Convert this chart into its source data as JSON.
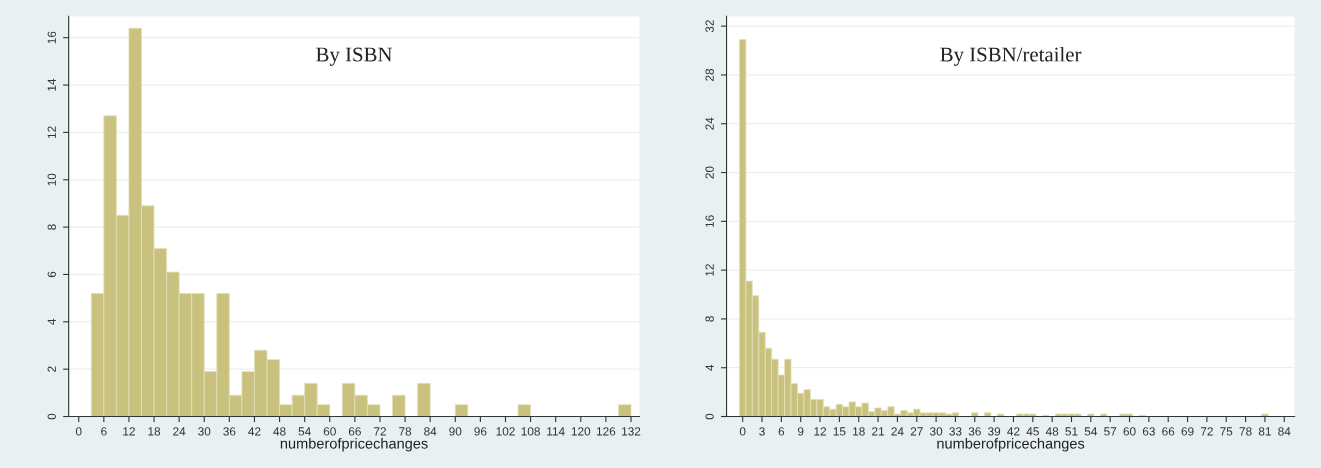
{
  "chart_data": [
    {
      "type": "histogram",
      "title": "By ISBN",
      "xlabel": "numberofpricechanges",
      "color": "#c9c27e",
      "bins": [
        3,
        6,
        9,
        12,
        15,
        18,
        21,
        24,
        27,
        30,
        33,
        36,
        39,
        42,
        45,
        48,
        51,
        54,
        57,
        60,
        63,
        66,
        69,
        72,
        75,
        78,
        81,
        84,
        87,
        90,
        93,
        96,
        99,
        102,
        105,
        108,
        111,
        114,
        117,
        120,
        123,
        126,
        129,
        132
      ],
      "values": [
        5.2,
        12.7,
        8.5,
        16.4,
        8.9,
        7.1,
        6.1,
        5.2,
        5.2,
        1.9,
        5.2,
        0.9,
        1.9,
        2.8,
        2.4,
        0.5,
        0.9,
        1.4,
        0.5,
        0,
        1.4,
        0.9,
        0.5,
        0,
        0.9,
        0,
        1.4,
        0,
        0,
        0.5,
        0,
        0,
        0,
        0,
        0.5,
        0,
        0,
        0,
        0,
        0,
        0,
        0,
        0.5
      ],
      "xlim": [
        -2.4,
        134
      ],
      "ylim": [
        0,
        16.9
      ],
      "xticks": [
        0,
        6,
        12,
        18,
        24,
        30,
        36,
        42,
        48,
        54,
        60,
        66,
        72,
        78,
        84,
        90,
        96,
        102,
        108,
        114,
        120,
        126,
        132
      ],
      "yticks": [
        0,
        2,
        4,
        6,
        8,
        10,
        12,
        14,
        16
      ],
      "grid": "y"
    },
    {
      "type": "histogram",
      "title": "By ISBN/retailer",
      "xlabel": "numberofpricechanges",
      "color": "#c9c27e",
      "bins": [
        -0.5,
        0.5,
        1.5,
        2.5,
        3.5,
        4.5,
        5.5,
        6.5,
        7.5,
        8.5,
        9.5,
        10.5,
        11.5,
        12.5,
        13.5,
        14.5,
        15.5,
        16.5,
        17.5,
        18.5,
        19.5,
        20.5,
        21.5,
        22.5,
        23.5,
        24.5,
        25.5,
        26.5,
        27.5,
        28.5,
        29.5,
        30.5,
        31.5,
        32.5,
        33.5,
        34.5,
        35.5,
        36.5,
        37.5,
        38.5,
        39.5,
        40.5,
        41.5,
        42.5,
        43.5,
        44.5,
        45.5,
        46.5,
        47.5,
        48.5,
        49.5,
        50.5,
        51.5,
        52.5,
        53.5,
        54.5,
        55.5,
        56.5,
        57.5,
        58.5,
        59.5,
        60.5,
        61.5,
        62.5,
        63.5,
        64.5,
        65.5,
        66.5,
        67.5,
        68.5,
        69.5,
        70.5,
        71.5,
        72.5,
        73.5,
        74.5,
        75.5,
        76.5,
        77.5,
        78.5,
        79.5,
        80.5,
        81.5
      ],
      "values": [
        30.9,
        11.1,
        9.9,
        6.9,
        5.6,
        4.7,
        3.4,
        4.7,
        2.7,
        1.9,
        2.2,
        1.4,
        1.4,
        0.8,
        0.6,
        1.0,
        0.8,
        1.2,
        0.8,
        1.1,
        0.4,
        0.7,
        0.5,
        0.8,
        0.2,
        0.5,
        0.3,
        0.6,
        0.3,
        0.3,
        0.3,
        0.3,
        0.2,
        0.3,
        0,
        0,
        0.3,
        0,
        0.3,
        0,
        0.2,
        0,
        0,
        0.2,
        0.2,
        0.2,
        0,
        0.1,
        0,
        0.2,
        0.2,
        0.2,
        0.2,
        0,
        0.2,
        0,
        0.2,
        0,
        0,
        0.2,
        0.2,
        0,
        0.1,
        0,
        0,
        0,
        0,
        0,
        0,
        0,
        0,
        0,
        0,
        0,
        0,
        0,
        0,
        0,
        0,
        0,
        0,
        0.2
      ],
      "xlim": [
        -2.5,
        85.6
      ],
      "ylim": [
        0,
        32.8
      ],
      "xticks": [
        0,
        3,
        6,
        9,
        12,
        15,
        18,
        21,
        24,
        27,
        30,
        33,
        36,
        39,
        42,
        45,
        48,
        51,
        54,
        57,
        60,
        63,
        66,
        69,
        72,
        75,
        78,
        81,
        84
      ],
      "yticks": [
        0,
        4,
        8,
        12,
        16,
        20,
        24,
        28,
        32
      ],
      "grid": "y"
    }
  ]
}
